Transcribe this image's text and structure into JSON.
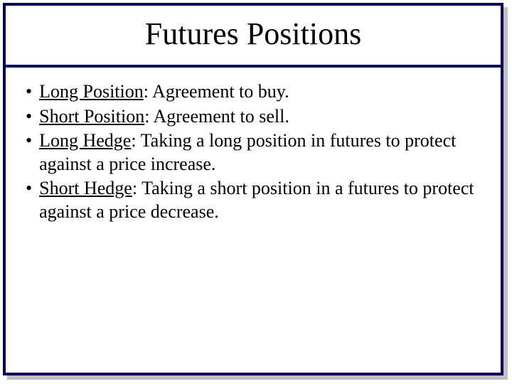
{
  "slide": {
    "border_color": "#000060",
    "shadow_color": "#c0c0c0",
    "background_color": "#ffffff"
  },
  "title": {
    "text": "Futures Positions",
    "font_size": 44,
    "color": "#000000"
  },
  "bullets": [
    {
      "term": "Long Position",
      "definition": ": Agreement to buy."
    },
    {
      "term": "Short Position",
      "definition": ": Agreement  to sell."
    },
    {
      "term": "Long Hedge",
      "definition": ": Taking a long position in futures to protect against a price increase."
    },
    {
      "term": "Short Hedge",
      "definition": ": Taking a short position in a futures to protect against a price decrease."
    }
  ],
  "bullet_style": {
    "marker": "•",
    "font_size": 26,
    "color": "#000000"
  }
}
